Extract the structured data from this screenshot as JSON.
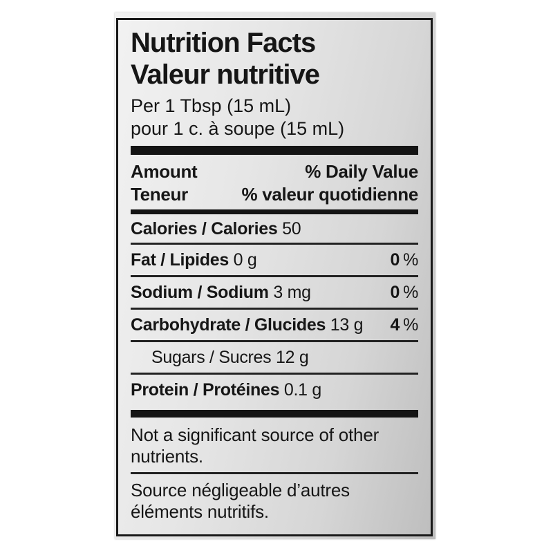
{
  "label": {
    "title_en": "Nutrition Facts",
    "title_fr": "Valeur nutritive",
    "serving_en": "Per 1 Tbsp (15 mL)",
    "serving_fr": "pour 1 c. à soupe (15 mL)",
    "header": {
      "amount_en": "Amount",
      "amount_fr": "Teneur",
      "dv_en": "% Daily Value",
      "dv_fr": "% valeur quotidienne"
    },
    "calories": {
      "name": "Calories / Calories",
      "value": "50"
    },
    "rows": [
      {
        "name": "Fat / Lipides",
        "value": "0 g",
        "dv_value": "0",
        "dv_unit": "%"
      },
      {
        "name": "Sodium / Sodium",
        "value": "3 mg",
        "dv_value": "0",
        "dv_unit": "%"
      },
      {
        "name": "Carbohydrate / Glucides",
        "value": "13 g",
        "dv_value": "4",
        "dv_unit": "%"
      },
      {
        "name": "Sugars / Sucres",
        "value": "12 g"
      },
      {
        "name": "Protein / Protéines",
        "value": "0.1 g"
      }
    ],
    "footnote_en": "Not a significant source of other\nnutrients.",
    "footnote_fr": "Source négligeable d’autres\néléments nutritifs.",
    "colors": {
      "ink": "#161616",
      "paper_light": "#f2f2f2",
      "paper_dark": "#bdbdbd",
      "background": "#ffffff"
    }
  }
}
